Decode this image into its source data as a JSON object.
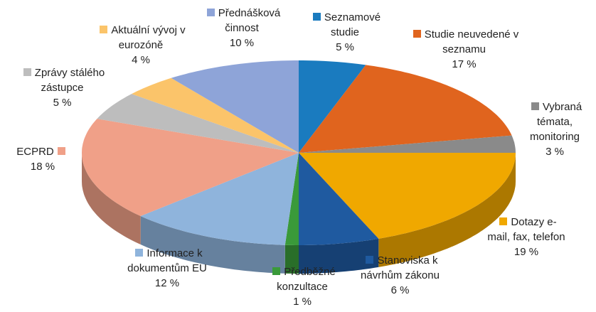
{
  "chart_data": {
    "type": "pie",
    "categories": [
      "Seznamové studie",
      "Studie neuvedené v seznamu",
      "Vybraná témata, monitoring",
      "Dotazy e-mail, fax, telefon",
      "Stanoviska k návrhům zákonu",
      "Předběžné konzultace",
      "Informace k dokumentům EU",
      "ECPRD",
      "Zprávy stálého zástupce",
      "Aktuální vývoj v eurozóně",
      "Přednášková činnost"
    ],
    "values": [
      5,
      17,
      3,
      19,
      6,
      1,
      12,
      18,
      5,
      4,
      10
    ],
    "value_labels": [
      "5 %",
      "17 %",
      "3 %",
      "19 %",
      "6 %",
      "1 %",
      "12 %",
      "18 %",
      "5 %",
      "4 %",
      "10 %"
    ],
    "colors": [
      "#1a7bbf",
      "#e0641e",
      "#8a8a8a",
      "#f0a800",
      "#1f5aa0",
      "#3a9a3a",
      "#8fb4dc",
      "#f0a088",
      "#bdbdbd",
      "#fbc46a",
      "#8ea4d8"
    ]
  }
}
